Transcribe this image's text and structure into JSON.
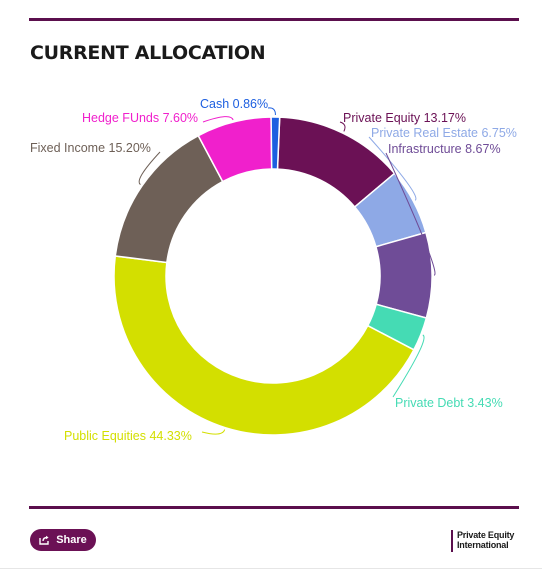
{
  "header": {
    "title": "CURRENT ALLOCATION"
  },
  "footer": {
    "share_label": "Share",
    "share_icon": "share-icon",
    "logo_line1": "Private Equity",
    "logo_line2": "International"
  },
  "chart_data": {
    "type": "pie",
    "title": "CURRENT ALLOCATION",
    "donut": true,
    "slices": [
      {
        "label": "Private Equity 13.17%",
        "value": 13.17,
        "color": "#6b1155"
      },
      {
        "label": "Private Real Estate 6.75%",
        "value": 6.75,
        "color": "#8ea9e6"
      },
      {
        "label": "Infrastructure 8.67%",
        "value": 8.67,
        "color": "#6f4c97"
      },
      {
        "label": "Private Debt 3.43%",
        "value": 3.43,
        "color": "#45dbb4"
      },
      {
        "label": "Public Equities 44.33%",
        "value": 44.33,
        "color": "#d3df00"
      },
      {
        "label": "Fixed Income 15.20%",
        "value": 15.2,
        "color": "#6e6057"
      },
      {
        "label": "Hedge FUnds 7.60%",
        "value": 7.6,
        "color": "#f020cc"
      },
      {
        "label": "Cash 0.86%",
        "value": 0.86,
        "color": "#1d5fe0"
      }
    ]
  }
}
